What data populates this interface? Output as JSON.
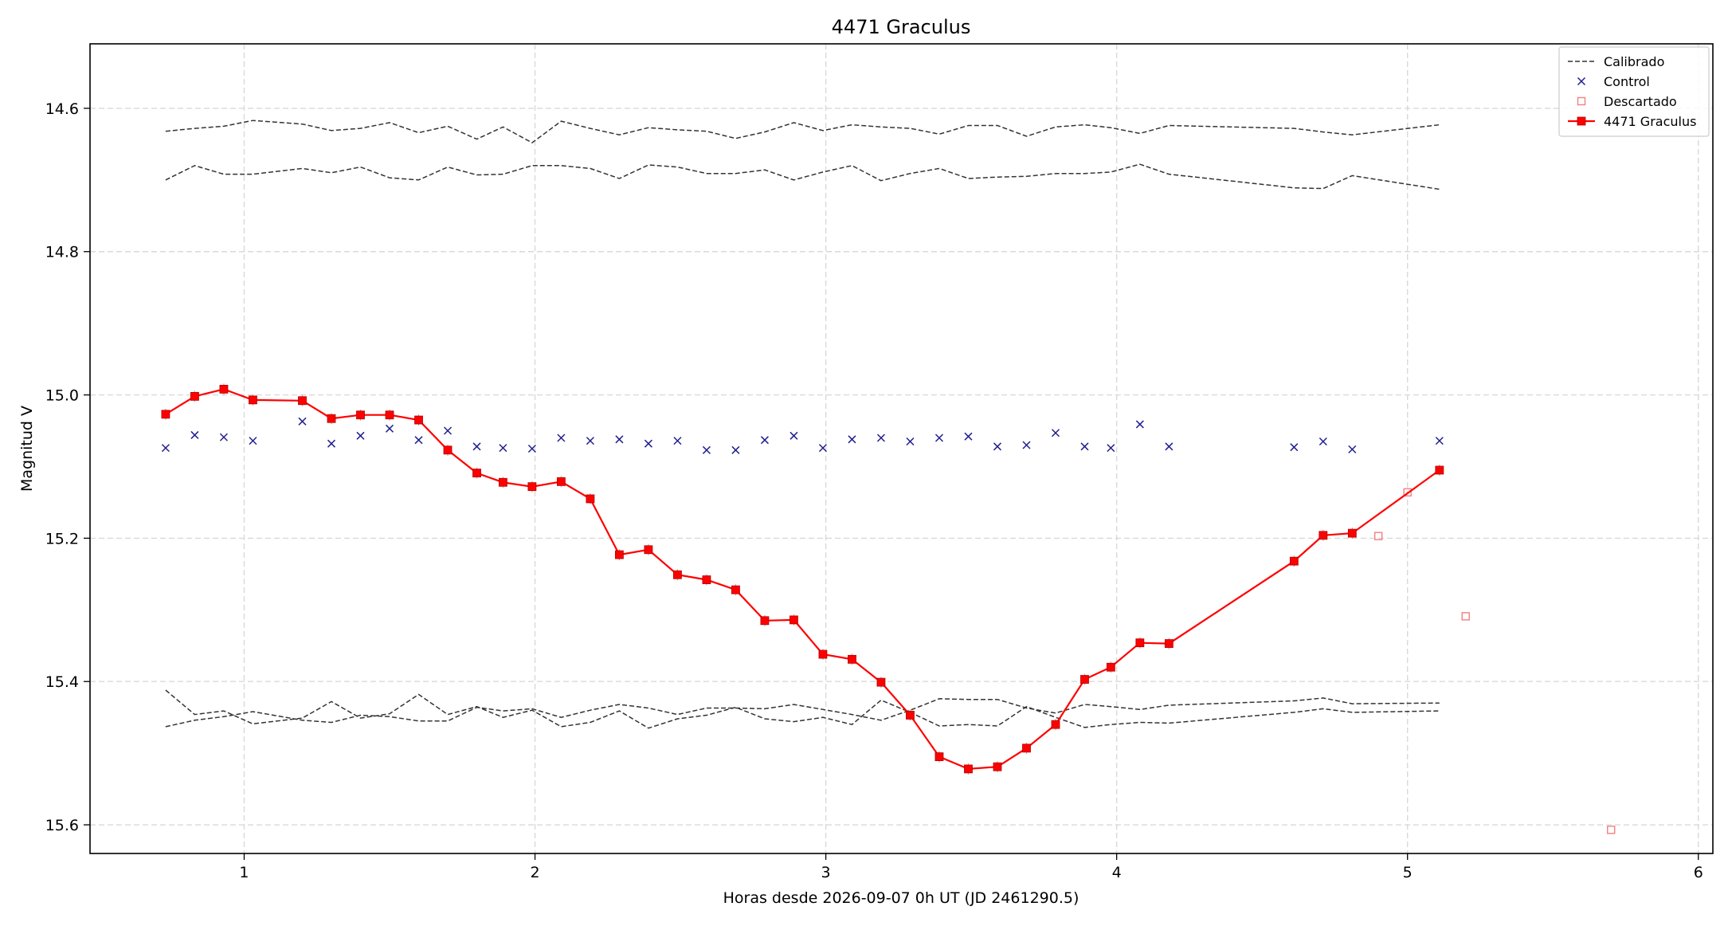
{
  "chart_data": {
    "type": "line",
    "title": "4471 Graculus",
    "xlabel": "Horas desde 2026-09-07 0h UT (JD 2461290.5)",
    "ylabel": "Magnitud V",
    "xlim": [
      0.47,
      6.05
    ],
    "ylim": [
      15.64,
      14.51
    ],
    "y_inverted": true,
    "grid": true,
    "legend_position": "top-right",
    "x_ticks": [
      1,
      2,
      3,
      4,
      5,
      6
    ],
    "y_ticks": [
      14.6,
      14.8,
      15.0,
      15.2,
      15.4,
      15.6
    ],
    "x_tick_labels": [
      "1",
      "2",
      "3",
      "4",
      "5",
      "6"
    ],
    "y_tick_labels": [
      "14.6",
      "14.8",
      "15.0",
      "15.2",
      "15.4",
      "15.6"
    ],
    "legend": [
      {
        "label": "Calibrado",
        "kind": "dashed-line",
        "color": "#333333"
      },
      {
        "label": "Control",
        "kind": "x-marker",
        "color": "#1f1f8f"
      },
      {
        "label": "Descartado",
        "kind": "open-square",
        "color": "#f08080"
      },
      {
        "label": "4471 Graculus",
        "kind": "line-square",
        "color": "#ff0000"
      }
    ],
    "series": [
      {
        "name": "4471 Graculus",
        "color": "#ff0000",
        "x": [
          0.73,
          0.83,
          0.93,
          1.03,
          1.2,
          1.3,
          1.4,
          1.5,
          1.6,
          1.7,
          1.8,
          1.89,
          1.99,
          2.09,
          2.19,
          2.29,
          2.39,
          2.49,
          2.59,
          2.69,
          2.79,
          2.89,
          2.99,
          3.09,
          3.19,
          3.29,
          3.39,
          3.49,
          3.59,
          3.69,
          3.79,
          3.89,
          3.98,
          4.08,
          4.18,
          4.61,
          4.71,
          4.81,
          5.11
        ],
        "y": [
          15.027,
          15.002,
          14.992,
          15.007,
          15.008,
          15.033,
          15.028,
          15.028,
          15.035,
          15.077,
          15.109,
          15.122,
          15.128,
          15.121,
          15.145,
          15.223,
          15.216,
          15.251,
          15.258,
          15.272,
          15.315,
          15.314,
          15.362,
          15.369,
          15.401,
          15.447,
          15.505,
          15.522,
          15.519,
          15.493,
          15.46,
          15.397,
          15.38,
          15.346,
          15.347,
          15.232,
          15.196,
          15.193,
          15.105
        ]
      },
      {
        "name": "Control",
        "color": "#1f1f8f",
        "x": [
          0.73,
          0.83,
          0.93,
          1.03,
          1.2,
          1.3,
          1.4,
          1.5,
          1.6,
          1.7,
          1.8,
          1.89,
          1.99,
          2.09,
          2.19,
          2.29,
          2.39,
          2.49,
          2.59,
          2.69,
          2.79,
          2.89,
          2.99,
          3.09,
          3.19,
          3.29,
          3.39,
          3.49,
          3.59,
          3.69,
          3.79,
          3.89,
          3.98,
          4.08,
          4.18,
          4.61,
          4.71,
          4.81,
          5.11
        ],
        "y": [
          15.074,
          15.056,
          15.059,
          15.064,
          15.037,
          15.068,
          15.057,
          15.047,
          15.063,
          15.05,
          15.072,
          15.074,
          15.075,
          15.06,
          15.064,
          15.062,
          15.068,
          15.064,
          15.077,
          15.077,
          15.063,
          15.057,
          15.074,
          15.062,
          15.06,
          15.065,
          15.06,
          15.058,
          15.072,
          15.07,
          15.053,
          15.072,
          15.074,
          15.041,
          15.072,
          15.073,
          15.065,
          15.076,
          15.064
        ]
      },
      {
        "name": "Descartado",
        "color": "#f08080",
        "x": [
          4.9,
          5.0,
          5.2,
          5.7
        ],
        "y": [
          15.197,
          15.136,
          15.309,
          15.607
        ]
      },
      {
        "name": "",
        "kind": "calibrated",
        "color": "#333333",
        "x": [
          0.73,
          0.83,
          0.93,
          1.03,
          1.2,
          1.3,
          1.4,
          1.5,
          1.6,
          1.7,
          1.8,
          1.89,
          1.99,
          2.09,
          2.19,
          2.29,
          2.39,
          2.49,
          2.59,
          2.69,
          2.79,
          2.89,
          2.99,
          3.09,
          3.19,
          3.29,
          3.39,
          3.49,
          3.59,
          3.69,
          3.79,
          3.89,
          3.98,
          4.08,
          4.18,
          4.61,
          4.71,
          4.81,
          5.11
        ],
        "y": [
          14.632,
          14.628,
          14.625,
          14.617,
          14.622,
          14.631,
          14.628,
          14.62,
          14.634,
          14.625,
          14.643,
          14.626,
          14.648,
          14.618,
          14.628,
          14.637,
          14.627,
          14.63,
          14.632,
          14.642,
          14.633,
          14.62,
          14.631,
          14.623,
          14.626,
          14.628,
          14.636,
          14.624,
          14.624,
          14.639,
          14.626,
          14.623,
          14.627,
          14.635,
          14.624,
          14.628,
          14.633,
          14.637,
          14.623
        ]
      },
      {
        "name": "",
        "kind": "calibrated",
        "color": "#333333",
        "x": [
          0.73,
          0.83,
          0.93,
          1.03,
          1.2,
          1.3,
          1.4,
          1.5,
          1.6,
          1.7,
          1.8,
          1.89,
          1.99,
          2.09,
          2.19,
          2.29,
          2.39,
          2.49,
          2.59,
          2.69,
          2.79,
          2.89,
          2.99,
          3.09,
          3.19,
          3.29,
          3.39,
          3.49,
          3.59,
          3.69,
          3.79,
          3.89,
          3.98,
          4.08,
          4.18,
          4.61,
          4.71,
          4.81,
          5.11
        ],
        "y": [
          14.7,
          14.68,
          14.692,
          14.692,
          14.684,
          14.69,
          14.682,
          14.697,
          14.7,
          14.682,
          14.693,
          14.692,
          14.68,
          14.68,
          14.684,
          14.698,
          14.679,
          14.682,
          14.691,
          14.691,
          14.686,
          14.7,
          14.689,
          14.68,
          14.701,
          14.691,
          14.684,
          14.698,
          14.696,
          14.695,
          14.691,
          14.691,
          14.689,
          14.678,
          14.692,
          14.711,
          14.712,
          14.694,
          14.713
        ]
      },
      {
        "name": "",
        "kind": "calibrated",
        "color": "#333333",
        "x": [
          0.73,
          0.83,
          0.93,
          1.03,
          1.2,
          1.3,
          1.4,
          1.5,
          1.6,
          1.7,
          1.8,
          1.89,
          1.99,
          2.09,
          2.19,
          2.29,
          2.39,
          2.49,
          2.59,
          2.69,
          2.79,
          2.89,
          2.99,
          3.09,
          3.19,
          3.29,
          3.39,
          3.49,
          3.59,
          3.69,
          3.79,
          3.89,
          3.98,
          4.08,
          4.18,
          4.61,
          4.71,
          4.81,
          5.11
        ],
        "y": [
          15.412,
          15.446,
          15.441,
          15.459,
          15.451,
          15.428,
          15.451,
          15.445,
          15.418,
          15.446,
          15.435,
          15.45,
          15.44,
          15.463,
          15.457,
          15.441,
          15.465,
          15.452,
          15.447,
          15.436,
          15.452,
          15.456,
          15.45,
          15.46,
          15.426,
          15.443,
          15.462,
          15.46,
          15.462,
          15.435,
          15.45,
          15.464,
          15.46,
          15.457,
          15.458,
          15.443,
          15.438,
          15.443,
          15.441
        ]
      },
      {
        "name": "",
        "kind": "calibrated",
        "color": "#333333",
        "x": [
          0.73,
          0.83,
          0.93,
          1.03,
          1.2,
          1.3,
          1.4,
          1.5,
          1.6,
          1.7,
          1.8,
          1.89,
          1.99,
          2.09,
          2.19,
          2.29,
          2.39,
          2.49,
          2.59,
          2.69,
          2.79,
          2.89,
          2.99,
          3.09,
          3.19,
          3.29,
          3.39,
          3.49,
          3.59,
          3.69,
          3.79,
          3.89,
          3.98,
          4.08,
          4.18,
          4.61,
          4.71,
          4.81,
          5.11
        ],
        "y": [
          15.463,
          15.454,
          15.449,
          15.442,
          15.454,
          15.457,
          15.447,
          15.449,
          15.455,
          15.455,
          15.436,
          15.441,
          15.438,
          15.45,
          15.44,
          15.432,
          15.437,
          15.446,
          15.437,
          15.437,
          15.438,
          15.432,
          15.439,
          15.446,
          15.454,
          15.44,
          15.424,
          15.425,
          15.425,
          15.437,
          15.444,
          15.432,
          15.435,
          15.439,
          15.433,
          15.427,
          15.423,
          15.431,
          15.43
        ]
      }
    ]
  }
}
